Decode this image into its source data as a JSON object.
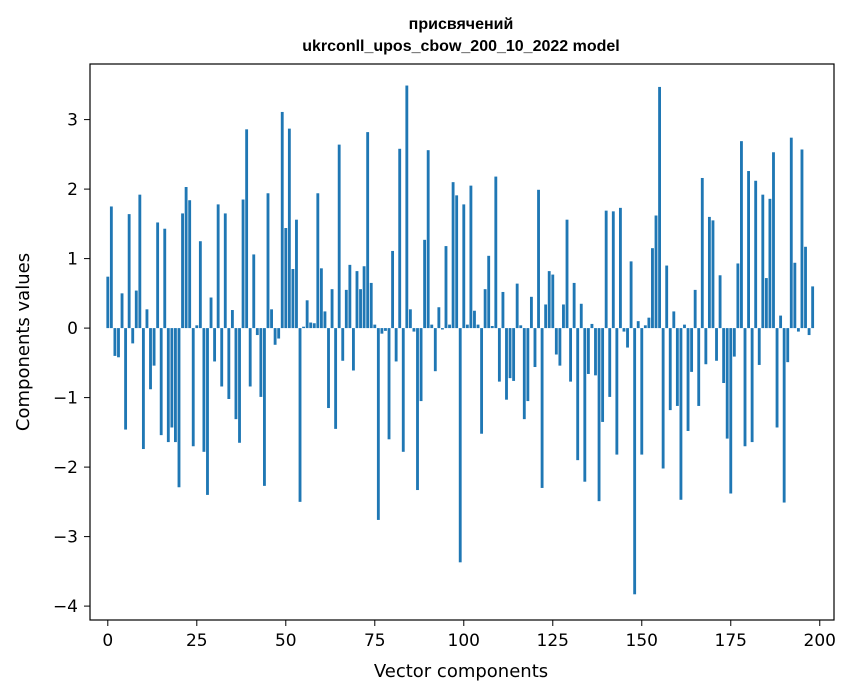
{
  "chart_data": {
    "type": "bar",
    "title_line1": "присвячений",
    "title_line2": "ukrconll_upos_cbow_200_10_2022 model",
    "xlabel": "Vector components",
    "ylabel": "Components values",
    "xlim": [
      -5,
      204
    ],
    "ylim": [
      -4.2,
      3.8
    ],
    "xticks": [
      0,
      25,
      50,
      75,
      100,
      125,
      150,
      175,
      200
    ],
    "yticks": [
      -4,
      -3,
      -2,
      -1,
      0,
      1,
      2,
      3
    ],
    "xtick_labels": [
      "0",
      "25",
      "50",
      "75",
      "100",
      "125",
      "150",
      "175",
      "200"
    ],
    "ytick_labels": [
      "−4",
      "−3",
      "−2",
      "−1",
      "0",
      "1",
      "2",
      "3"
    ],
    "bar_color": "#1f77b4",
    "values": [
      0.74,
      1.75,
      -0.4,
      -0.42,
      0.5,
      -1.46,
      1.64,
      -0.22,
      0.54,
      1.92,
      -1.74,
      0.27,
      -0.88,
      -0.54,
      1.52,
      -1.54,
      1.43,
      -1.64,
      -1.43,
      -1.64,
      -2.29,
      1.65,
      2.03,
      1.84,
      -1.7,
      0.04,
      1.25,
      -1.78,
      -2.4,
      0.44,
      -0.48,
      1.78,
      -0.84,
      1.65,
      -1.02,
      0.26,
      -1.31,
      -1.65,
      1.85,
      2.86,
      -0.84,
      1.06,
      -0.1,
      -0.99,
      -2.27,
      1.94,
      0.27,
      -0.24,
      -0.15,
      3.11,
      1.44,
      2.87,
      0.85,
      1.56,
      -2.5,
      0.02,
      0.4,
      0.08,
      0.07,
      1.94,
      0.86,
      0.24,
      -1.15,
      0.56,
      -1.45,
      2.64,
      -0.47,
      0.55,
      0.91,
      -0.61,
      0.82,
      0.56,
      0.89,
      2.82,
      0.65,
      0.05,
      -2.76,
      -0.08,
      -0.04,
      -1.6,
      1.11,
      -0.48,
      2.58,
      -1.78,
      3.49,
      0.27,
      -0.05,
      -2.33,
      -1.05,
      1.27,
      2.56,
      0.05,
      -0.62,
      0.3,
      -0.02,
      1.18,
      0.05,
      2.1,
      1.91,
      -3.37,
      1.78,
      0.05,
      2.05,
      0.25,
      0.05,
      -1.52,
      0.56,
      1.04,
      0.03,
      2.18,
      -0.77,
      0.52,
      -1.03,
      -0.72,
      -0.76,
      0.64,
      0.04,
      -1.31,
      -1.05,
      0.45,
      -0.56,
      1.99,
      -2.3,
      0.34,
      0.82,
      0.77,
      -0.38,
      -0.54,
      0.34,
      1.56,
      -0.77,
      0.65,
      -1.9,
      0.35,
      -2.21,
      -0.66,
      0.06,
      -0.68,
      -2.49,
      -1.35,
      1.69,
      -0.99,
      1.68,
      -1.82,
      1.73,
      -0.05,
      -0.28,
      0.96,
      -3.83,
      0.1,
      -1.82,
      0.04,
      0.15,
      1.15,
      1.62,
      3.47,
      -2.02,
      0.9,
      -1.18,
      0.24,
      -1.12,
      -2.47,
      0.05,
      -1.48,
      -0.63,
      0.55,
      -1.12,
      2.16,
      -0.52,
      1.6,
      1.55,
      -0.47,
      0.76,
      -0.79,
      -1.59,
      -2.38,
      -0.41,
      0.93,
      2.69,
      -1.7,
      2.26,
      -1.64,
      2.12,
      -0.53,
      1.92,
      0.72,
      1.86,
      2.53,
      -1.43,
      0.18,
      -2.51,
      -0.49,
      2.74,
      0.94,
      -0.05,
      2.57,
      1.17,
      -0.1,
      0.6
    ]
  }
}
